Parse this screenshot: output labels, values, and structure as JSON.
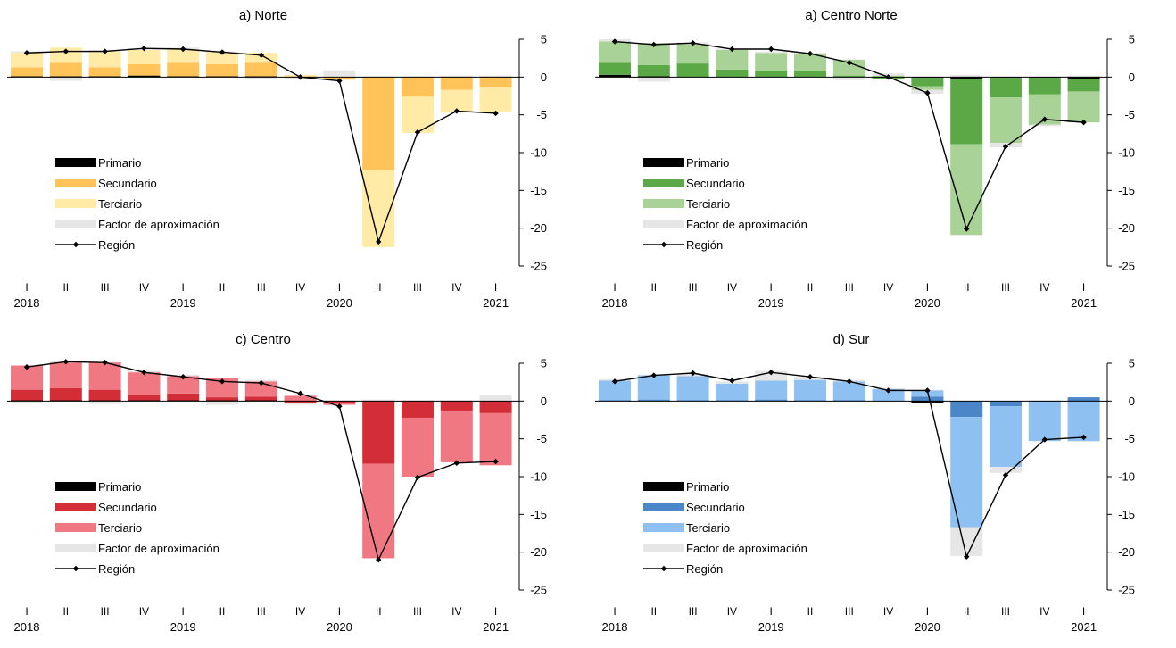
{
  "chart_data": [
    {
      "type": "bar",
      "title": "a) Norte",
      "quarters": [
        "I",
        "II",
        "III",
        "IV",
        "I",
        "II",
        "III",
        "IV",
        "I",
        "II",
        "III",
        "IV",
        "I"
      ],
      "years": [
        {
          "label": "2018",
          "index": 0
        },
        {
          "label": "2019",
          "index": 4
        },
        {
          "label": "2020",
          "index": 8
        },
        {
          "label": "2021",
          "index": 12
        }
      ],
      "ylim": [
        -25,
        5
      ],
      "yticks": [
        5,
        0,
        -5,
        -10,
        -15,
        -20,
        -25
      ],
      "legend_placement": "left",
      "colors": {
        "primario": "#000000",
        "secundario": "#ffc35a",
        "terciario": "#ffeba5",
        "factor": "#e6e6e6",
        "region": "#000000"
      },
      "series": [
        {
          "name": "Primario",
          "key": "primario",
          "values": [
            0.1,
            0.1,
            0.1,
            0.2,
            0.1,
            0.1,
            0.1,
            0,
            0,
            0,
            0,
            0,
            0
          ]
        },
        {
          "name": "Secundario",
          "key": "secundario",
          "values": [
            1.2,
            1.8,
            1.2,
            1.5,
            1.8,
            1.6,
            1.8,
            0.1,
            -0.2,
            -12.3,
            -2.6,
            -1.7,
            -1.4
          ]
        },
        {
          "name": "Terciario",
          "key": "terciario",
          "values": [
            1.9,
            2.0,
            2.1,
            1.9,
            1.8,
            1.6,
            1.3,
            0.2,
            -0.2,
            -10.2,
            -4.8,
            -3.0,
            -3.2
          ]
        },
        {
          "name": "Factor de aproximación",
          "key": "factor",
          "values": [
            0.2,
            -0.5,
            0.2,
            0.2,
            0.2,
            0.1,
            -0.2,
            -0.2,
            0.9,
            0.1,
            0.1,
            0.2,
            0.2
          ]
        }
      ],
      "region": {
        "name": "Región",
        "values": [
          3.2,
          3.4,
          3.4,
          3.8,
          3.7,
          3.3,
          2.9,
          0,
          -0.5,
          -21.8,
          -7.3,
          -4.5,
          -4.8
        ]
      }
    },
    {
      "type": "bar",
      "title": "a) Centro Norte",
      "quarters": [
        "I",
        "II",
        "III",
        "IV",
        "I",
        "II",
        "III",
        "IV",
        "I",
        "II",
        "III",
        "IV",
        "I"
      ],
      "years": [
        {
          "label": "2018",
          "index": 0
        },
        {
          "label": "2019",
          "index": 4
        },
        {
          "label": "2020",
          "index": 8
        },
        {
          "label": "2021",
          "index": 12
        }
      ],
      "ylim": [
        -25,
        5
      ],
      "yticks": [
        5,
        0,
        -5,
        -10,
        -15,
        -20,
        -25
      ],
      "legend_placement": "left",
      "colors": {
        "primario": "#000000",
        "secundario": "#5aa946",
        "terciario": "#a9d296",
        "factor": "#e6e6e6",
        "region": "#000000"
      },
      "series": [
        {
          "name": "Primario",
          "key": "primario",
          "values": [
            0.3,
            0.1,
            0,
            0,
            0,
            0,
            0,
            0,
            -0.1,
            -0.3,
            -0.1,
            -0.1,
            -0.3
          ]
        },
        {
          "name": "Secundario",
          "key": "secundario",
          "values": [
            1.6,
            1.5,
            1.8,
            1.0,
            0.8,
            0.8,
            0.2,
            -0.3,
            -1.1,
            -8.6,
            -2.6,
            -2.2,
            -1.6
          ]
        },
        {
          "name": "Terciario",
          "key": "terciario",
          "values": [
            2.8,
            2.9,
            2.6,
            2.6,
            2.4,
            2.3,
            2.1,
            0.2,
            -0.5,
            -12.0,
            -6.0,
            -4.0,
            -4.1
          ]
        },
        {
          "name": "Factor de aproximación",
          "key": "factor",
          "values": [
            0.3,
            -0.6,
            0.2,
            0.2,
            0.2,
            0.1,
            -0.4,
            0.3,
            -0.5,
            0.3,
            -0.6,
            -0.2,
            0.2
          ]
        }
      ],
      "region": {
        "name": "Región",
        "values": [
          4.7,
          4.3,
          4.5,
          3.7,
          3.7,
          3.1,
          1.9,
          0,
          -2.1,
          -20.1,
          -9.2,
          -5.6,
          -6.0
        ]
      }
    },
    {
      "type": "bar",
      "title": "c) Centro",
      "quarters": [
        "I",
        "II",
        "III",
        "IV",
        "I",
        "II",
        "III",
        "IV",
        "I",
        "II",
        "III",
        "IV",
        "I"
      ],
      "years": [
        {
          "label": "2018",
          "index": 0
        },
        {
          "label": "2019",
          "index": 4
        },
        {
          "label": "2020",
          "index": 8
        },
        {
          "label": "2021",
          "index": 12
        }
      ],
      "ylim": [
        -25,
        5
      ],
      "yticks": [
        5,
        0,
        -5,
        -10,
        -15,
        -20,
        -25
      ],
      "legend_placement": "left",
      "colors": {
        "primario": "#000000",
        "secundario": "#d32d37",
        "terciario": "#f07882",
        "factor": "#e6e6e6",
        "region": "#000000"
      },
      "series": [
        {
          "name": "Primario",
          "key": "primario",
          "values": [
            0.1,
            0.1,
            0.1,
            0.1,
            0.1,
            0.1,
            0.1,
            0,
            0,
            0,
            0,
            0,
            0
          ]
        },
        {
          "name": "Secundario",
          "key": "secundario",
          "values": [
            1.4,
            1.6,
            1.4,
            0.7,
            0.9,
            0.4,
            0.5,
            -0.3,
            -0.2,
            -8.3,
            -2.2,
            -1.3,
            -1.6
          ]
        },
        {
          "name": "Terciario",
          "key": "terciario",
          "values": [
            3.2,
            3.4,
            3.6,
            3.0,
            2.3,
            2.5,
            2.0,
            0.7,
            -0.3,
            -12.5,
            -7.8,
            -6.8,
            -6.9
          ]
        },
        {
          "name": "Factor de aproximación",
          "key": "factor",
          "values": [
            -0.2,
            0.2,
            -0.4,
            0.2,
            0.2,
            -0.5,
            0.2,
            -0.2,
            0.1,
            0.2,
            0.1,
            0.1,
            0.8
          ]
        }
      ],
      "region": {
        "name": "Región",
        "values": [
          4.5,
          5.2,
          5.1,
          3.8,
          3.2,
          2.6,
          2.4,
          1.0,
          -0.7,
          -21.0,
          -10.1,
          -8.2,
          -8.0
        ]
      }
    },
    {
      "type": "bar",
      "title": "d) Sur",
      "quarters": [
        "I",
        "II",
        "III",
        "IV",
        "I",
        "II",
        "III",
        "IV",
        "I",
        "II",
        "III",
        "IV",
        "I"
      ],
      "years": [
        {
          "label": "2018",
          "index": 0
        },
        {
          "label": "2019",
          "index": 4
        },
        {
          "label": "2020",
          "index": 8
        },
        {
          "label": "2021",
          "index": 12
        }
      ],
      "ylim": [
        -25,
        5
      ],
      "yticks": [
        5,
        0,
        -5,
        -10,
        -15,
        -20,
        -25
      ],
      "legend_placement": "left",
      "colors": {
        "primario": "#000000",
        "secundario": "#4a86c8",
        "terciario": "#8fc0f2",
        "factor": "#e6e6e6",
        "region": "#000000"
      },
      "series": [
        {
          "name": "Primario",
          "key": "primario",
          "values": [
            0,
            0,
            0,
            0,
            0,
            0,
            0,
            0,
            -0.2,
            0,
            0,
            0,
            0
          ]
        },
        {
          "name": "Secundario",
          "key": "secundario",
          "values": [
            0.1,
            0.2,
            0.1,
            0.1,
            0.2,
            0.1,
            0.1,
            0,
            0.6,
            -2.1,
            -0.7,
            -0.1,
            0.5
          ]
        },
        {
          "name": "Terciario",
          "key": "terciario",
          "values": [
            2.6,
            3.2,
            3.2,
            2.2,
            2.5,
            2.7,
            2.5,
            1.6,
            0.8,
            -14.6,
            -8.0,
            -5.2,
            -5.3
          ]
        },
        {
          "name": "Factor de aproximación",
          "key": "factor",
          "values": [
            0.2,
            0.1,
            0.3,
            0.3,
            1.3,
            0.4,
            0.2,
            0.1,
            0.1,
            -3.8,
            -0.8,
            0.1,
            -0.1
          ]
        }
      ],
      "region": {
        "name": "Región",
        "values": [
          2.6,
          3.4,
          3.7,
          2.7,
          3.8,
          3.2,
          2.6,
          1.4,
          1.4,
          -20.6,
          -9.8,
          -5.1,
          -4.8
        ]
      }
    }
  ]
}
